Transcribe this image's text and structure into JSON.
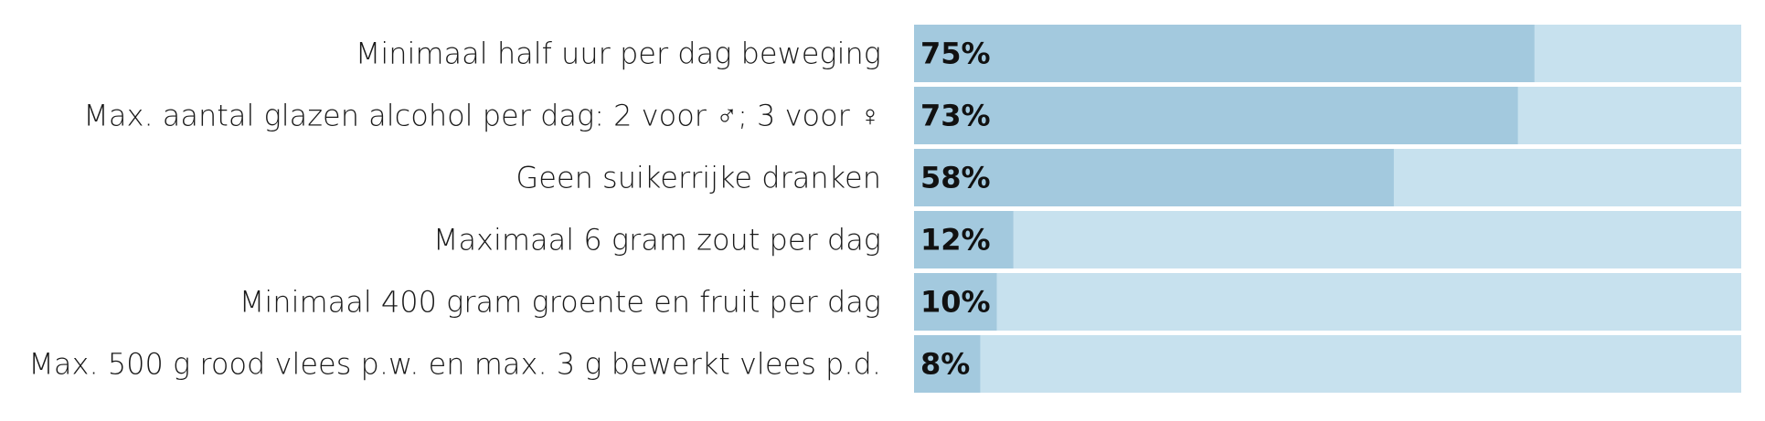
{
  "chart_data": {
    "type": "bar",
    "orientation": "horizontal",
    "categories": [
      "Minimaal half uur per dag beweging",
      "Max. aantal glazen alcohol per dag: 2 voor ♂; 3 voor ♀",
      "Geen suikerrijke dranken",
      "Maximaal 6 gram zout per dag",
      "Minimaal 400 gram groente en fruit per dag",
      "Max. 500 g rood vlees p.w. en max. 3 g bewerkt vlees p.d."
    ],
    "values": [
      75,
      73,
      58,
      12,
      10,
      8
    ],
    "value_labels": [
      "75%",
      "73%",
      "58%",
      "12%",
      "10%",
      "8%"
    ],
    "xlim": [
      0,
      100
    ],
    "title": "",
    "xlabel": "",
    "ylabel": "",
    "grid": false,
    "legend": "none",
    "colors": {
      "bar": "#a3c9de",
      "track": "#c7e1ee"
    }
  }
}
